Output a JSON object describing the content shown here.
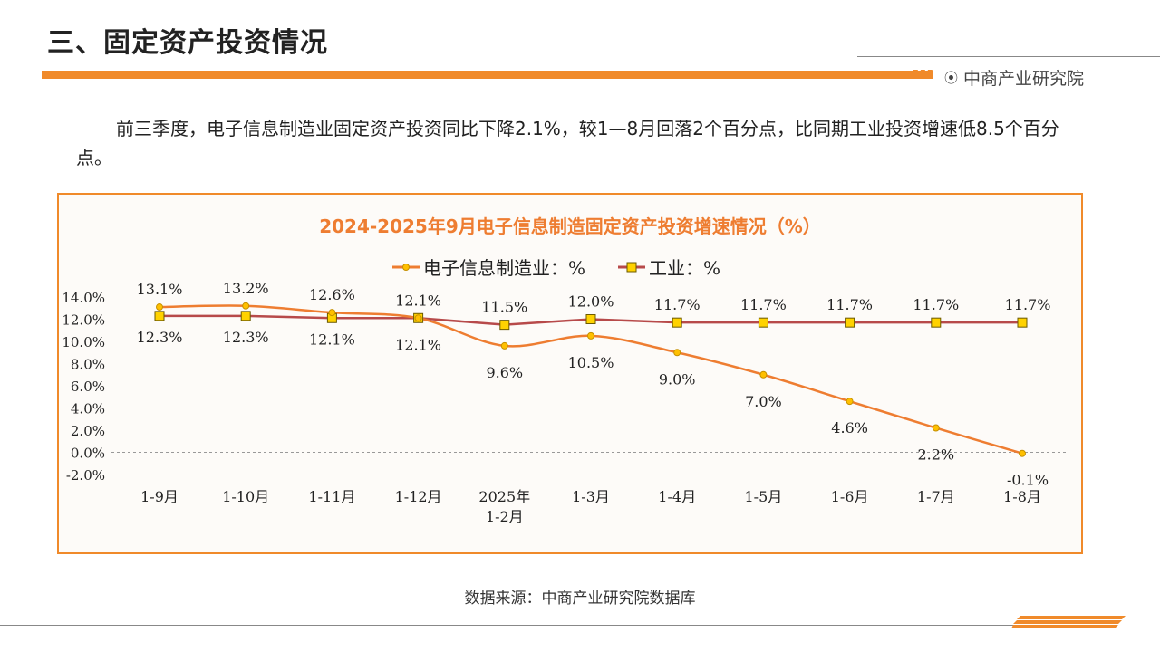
{
  "header": {
    "title": "三、固定资产投资情况",
    "brand": "中商产业研究院"
  },
  "paragraph": "前三季度，电子信息制造业固定资产投资同比下降2.1%，较1—8月回落2个百分点，比同期工业投资增速低8.5个百分点。",
  "source": "数据来源：中商产业研究院数据库",
  "colors": {
    "accent": "#f08a2a",
    "series1": "#ee7d31",
    "series2": "#b74a4a",
    "marker2_fill": "#ffd200",
    "marker1_fill": "#ffc000"
  },
  "chart_data": {
    "type": "line",
    "title": "2024-2025年9月电子信息制造固定资产投资增速情况（%）",
    "categories": [
      "1-9月",
      "1-10月",
      "1-11月",
      "1-12月",
      "2025年\n1-2月",
      "1-3月",
      "1-4月",
      "1-5月",
      "1-6月",
      "1-7月",
      "1-8月"
    ],
    "series": [
      {
        "name": "电子信息制造业：%",
        "values": [
          13.1,
          13.2,
          12.6,
          12.1,
          9.6,
          10.5,
          9.0,
          7.0,
          4.6,
          2.2,
          -0.1
        ],
        "labels": [
          "13.1%",
          "13.2%",
          "12.6%",
          "12.1%",
          "9.6%",
          "10.5%",
          "9.0%",
          "7.0%",
          "4.6%",
          "2.2%",
          "-0.1%"
        ]
      },
      {
        "name": "工业：%",
        "values": [
          12.3,
          12.3,
          12.1,
          12.1,
          11.5,
          12.0,
          11.7,
          11.7,
          11.7,
          11.7,
          11.7
        ],
        "labels": [
          "12.3%",
          "12.3%",
          "12.1%",
          "12.1%",
          "11.5%",
          "12.0%",
          "11.7%",
          "11.7%",
          "11.7%",
          "11.7%",
          "11.7%"
        ]
      }
    ],
    "ylim": [
      -2,
      14
    ],
    "yticks": [
      "-2.0%",
      "0.0%",
      "2.0%",
      "4.0%",
      "6.0%",
      "8.0%",
      "10.0%",
      "12.0%",
      "14.0%"
    ],
    "ytick_values": [
      -2,
      0,
      2,
      4,
      6,
      8,
      10,
      12,
      14
    ],
    "legend": "top",
    "grid": false
  }
}
